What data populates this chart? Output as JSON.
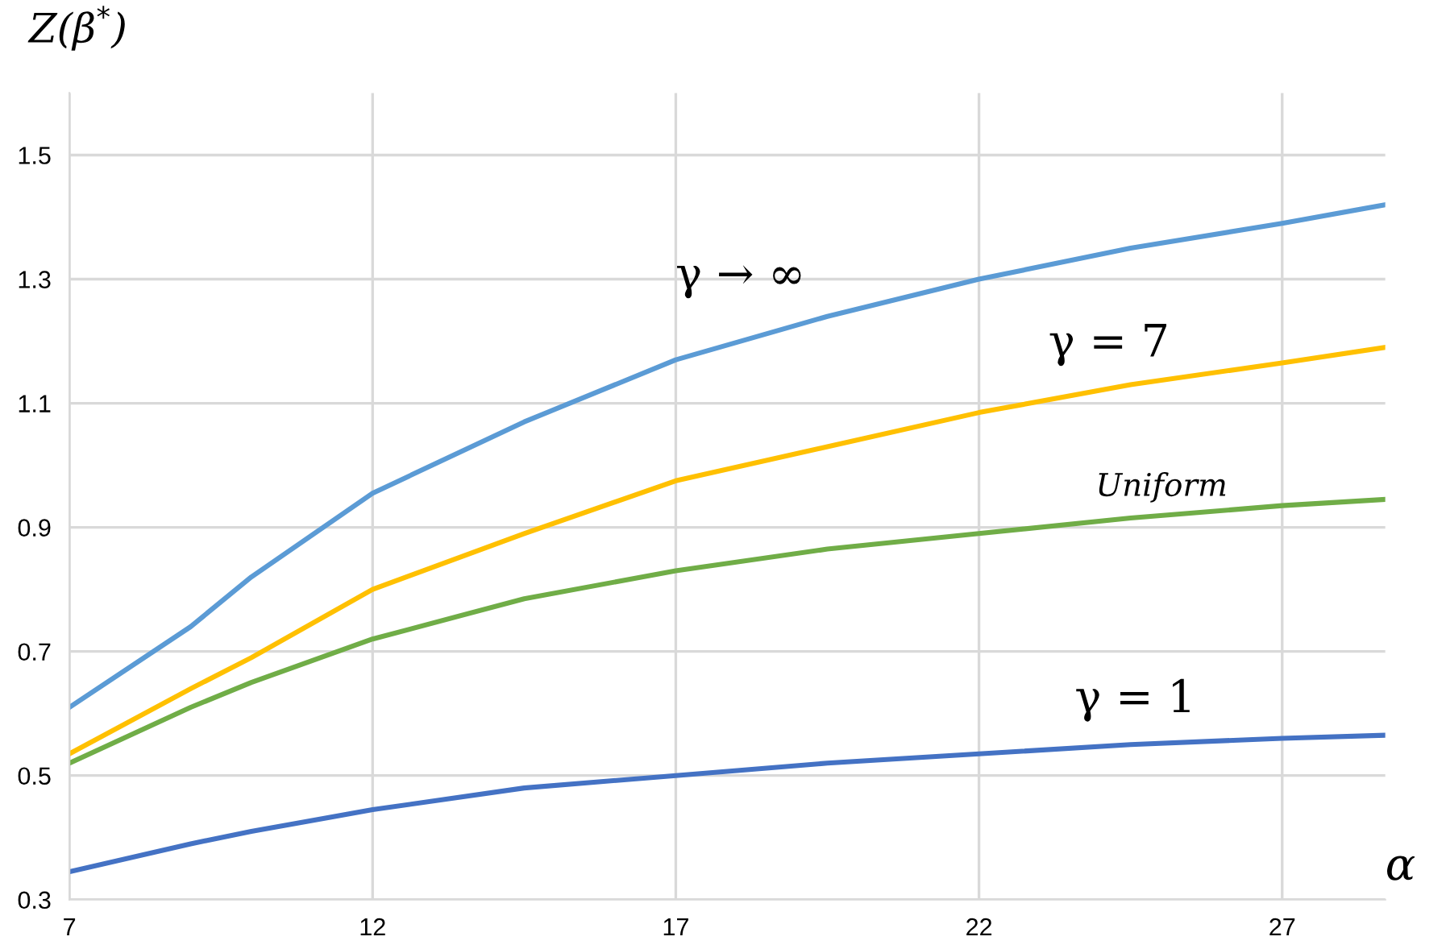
{
  "chart_data": {
    "type": "line",
    "xlabel": "α",
    "ylabel": "Z(β$^{*}$)",
    "x": [
      7,
      9,
      10,
      12,
      14.5,
      17,
      19.5,
      22,
      24.5,
      27,
      28.7
    ],
    "series": [
      {
        "name": "γ → ∞",
        "color": "#5b9bd5",
        "values": [
          0.61,
          0.74,
          0.82,
          0.955,
          1.07,
          1.17,
          1.24,
          1.3,
          1.35,
          1.39,
          1.42
        ]
      },
      {
        "name": "γ = 7",
        "color": "#ffc000",
        "values": [
          0.535,
          0.64,
          0.69,
          0.8,
          0.89,
          0.975,
          1.03,
          1.085,
          1.13,
          1.165,
          1.19
        ]
      },
      {
        "name": "Uniform",
        "color": "#70ad47",
        "values": [
          0.52,
          0.61,
          0.65,
          0.72,
          0.785,
          0.83,
          0.865,
          0.89,
          0.915,
          0.935,
          0.945
        ]
      },
      {
        "name": "γ = 1",
        "color": "#4472c4",
        "values": [
          0.345,
          0.39,
          0.41,
          0.445,
          0.48,
          0.5,
          0.52,
          0.535,
          0.55,
          0.56,
          0.565
        ]
      }
    ],
    "xlim": [
      7,
      28.7
    ],
    "ylim": [
      0.3,
      1.6
    ],
    "xticks": [
      7,
      12,
      17,
      22,
      27
    ],
    "yticks": [
      0.3,
      0.5,
      0.7,
      0.9,
      1.1,
      1.3,
      1.5
    ],
    "grid": true,
    "legend": false,
    "marker": "none",
    "line_style": "solid"
  }
}
